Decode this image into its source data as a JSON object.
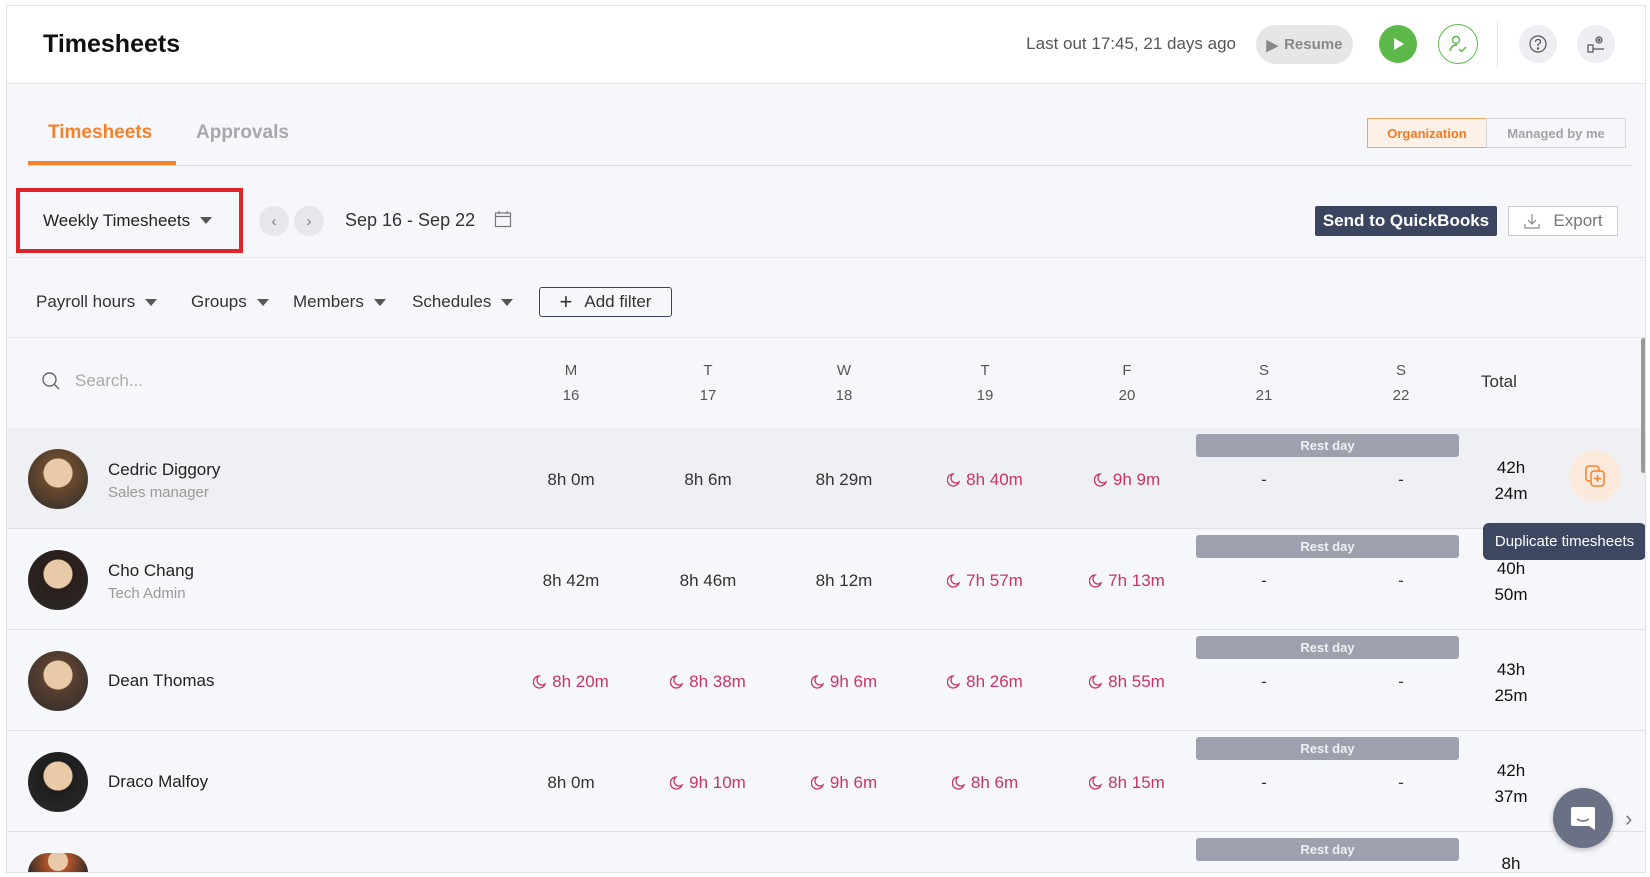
{
  "header": {
    "title": "Timesheets",
    "last_out": "Last out 17:45, 21 days ago",
    "resume_label": "Resume"
  },
  "tabs": [
    {
      "label": "Timesheets",
      "active": true
    },
    {
      "label": "Approvals",
      "active": false
    }
  ],
  "scope_toggle": {
    "options": [
      "Organization",
      "Managed by me"
    ],
    "selected": "Organization"
  },
  "toolbar": {
    "view_select": "Weekly Timesheets",
    "date_range": "Sep 16 - Sep 22",
    "send_label": "Send to QuickBooks",
    "export_label": "Export"
  },
  "filters": {
    "items": [
      "Payroll hours",
      "Groups",
      "Members",
      "Schedules"
    ],
    "add_label": "Add filter"
  },
  "table": {
    "search_placeholder": "Search...",
    "days": [
      {
        "letter": "M",
        "num": "16"
      },
      {
        "letter": "T",
        "num": "17"
      },
      {
        "letter": "W",
        "num": "18"
      },
      {
        "letter": "T",
        "num": "19"
      },
      {
        "letter": "F",
        "num": "20"
      },
      {
        "letter": "S",
        "num": "21"
      },
      {
        "letter": "S",
        "num": "22"
      }
    ],
    "total_label": "Total",
    "rest_label": "Rest day",
    "rows": [
      {
        "name": "Cedric Diggory",
        "role": "Sales manager",
        "cells": [
          {
            "v": "8h 0m",
            "ot": false
          },
          {
            "v": "8h 6m",
            "ot": false
          },
          {
            "v": "8h 29m",
            "ot": false
          },
          {
            "v": "8h 40m",
            "ot": true
          },
          {
            "v": "9h 9m",
            "ot": true
          },
          {
            "v": "-",
            "ot": false
          },
          {
            "v": "-",
            "ot": false
          }
        ],
        "total": [
          "42h",
          "24m"
        ],
        "avatar": "#6b4a2e"
      },
      {
        "name": "Cho Chang",
        "role": "Tech Admin",
        "cells": [
          {
            "v": "8h 42m",
            "ot": false
          },
          {
            "v": "8h 46m",
            "ot": false
          },
          {
            "v": "8h 12m",
            "ot": false
          },
          {
            "v": "7h 57m",
            "ot": true
          },
          {
            "v": "7h 13m",
            "ot": true
          },
          {
            "v": "-",
            "ot": false
          },
          {
            "v": "-",
            "ot": false
          }
        ],
        "total": [
          "40h",
          "50m"
        ],
        "avatar": "#2a1e1a"
      },
      {
        "name": "Dean Thomas",
        "role": "",
        "cells": [
          {
            "v": "8h 20m",
            "ot": true
          },
          {
            "v": "8h 38m",
            "ot": true
          },
          {
            "v": "9h 6m",
            "ot": true
          },
          {
            "v": "8h 26m",
            "ot": true
          },
          {
            "v": "8h 55m",
            "ot": true
          },
          {
            "v": "-",
            "ot": false
          },
          {
            "v": "-",
            "ot": false
          }
        ],
        "total": [
          "43h",
          "25m"
        ],
        "avatar": "#5a4030"
      },
      {
        "name": "Draco Malfoy",
        "role": "",
        "cells": [
          {
            "v": "8h 0m",
            "ot": false
          },
          {
            "v": "9h 10m",
            "ot": true
          },
          {
            "v": "9h 6m",
            "ot": true
          },
          {
            "v": "8h 6m",
            "ot": true
          },
          {
            "v": "8h 15m",
            "ot": true
          },
          {
            "v": "-",
            "ot": false
          },
          {
            "v": "-",
            "ot": false
          }
        ],
        "total": [
          "42h",
          "37m"
        ],
        "avatar": "#1e1e1e"
      },
      {
        "name": "",
        "role": "",
        "cells": [],
        "total": [
          "8h",
          ""
        ],
        "avatar": "#b5542a"
      }
    ]
  },
  "tooltip": "Duplicate timesheets",
  "colors": {
    "accent": "#f5822a",
    "overtime": "#c8346a",
    "navy": "#3b4560",
    "green": "#5cb848",
    "highlight": "#e0242b"
  }
}
